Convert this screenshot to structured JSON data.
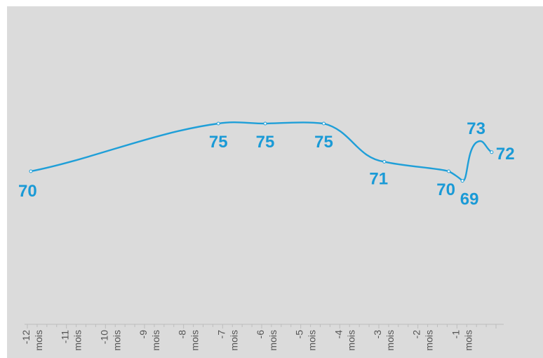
{
  "chart_data": {
    "type": "line",
    "title": "",
    "xlabel": "",
    "ylabel": "",
    "grid": false,
    "legend": "none",
    "xlim": [
      -12,
      0
    ],
    "ylim": [
      55,
      85
    ],
    "x_tick_labels": [
      {
        "x": -12,
        "num": "-12",
        "unit": "mois"
      },
      {
        "x": -11,
        "num": "-11",
        "unit": "mois"
      },
      {
        "x": -10,
        "num": "-10",
        "unit": "mois"
      },
      {
        "x": -9,
        "num": "-9",
        "unit": "mois"
      },
      {
        "x": -8,
        "num": "-8",
        "unit": "mois"
      },
      {
        "x": -7,
        "num": "-7",
        "unit": "mois"
      },
      {
        "x": -6,
        "num": "-6",
        "unit": "mois"
      },
      {
        "x": -5,
        "num": "-5",
        "unit": "mois"
      },
      {
        "x": -4,
        "num": "-4",
        "unit": "mois"
      },
      {
        "x": -3,
        "num": "-3",
        "unit": "mois"
      },
      {
        "x": -2,
        "num": "-2",
        "unit": "mois"
      },
      {
        "x": -1,
        "num": "-1",
        "unit": "mois"
      }
    ],
    "series": [
      {
        "x": [
          -12,
          -7.2,
          -6.0,
          -4.5,
          -2.95,
          -1.3,
          -0.95,
          -0.2
        ],
        "values": [
          70,
          75,
          75,
          75,
          71,
          70,
          69,
          72
        ],
        "labels": [
          "70",
          "75",
          "75",
          "75",
          "71",
          "70",
          "69",
          "73",
          "72"
        ]
      }
    ],
    "extra_peak": {
      "x": -0.6,
      "value": 73
    }
  },
  "colors": {
    "line": "#1f9fd8",
    "label": "#1a9ad6",
    "plot_bg": "#dbdbdb",
    "axis": "#bdbdbd",
    "tick_text": "#555555"
  }
}
